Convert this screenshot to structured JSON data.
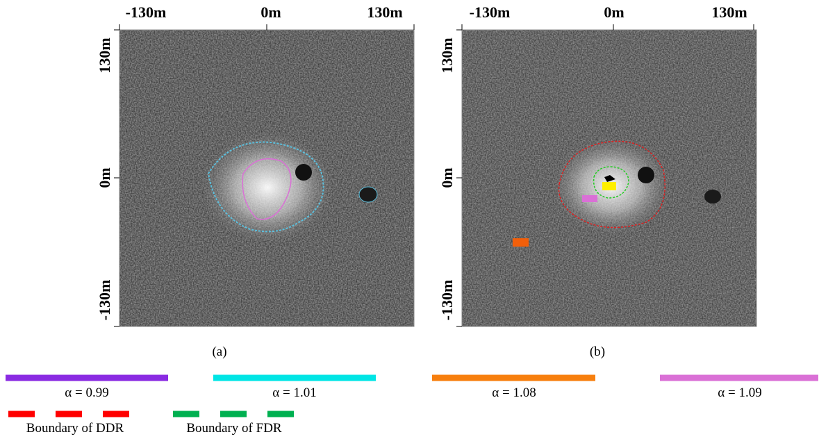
{
  "panels": [
    {
      "x_labels": [
        "-130m",
        "0m",
        "130m"
      ],
      "y_labels": [
        "130m",
        "0m",
        "-130m"
      ],
      "caption": "(a)"
    },
    {
      "x_labels": [
        "-130m",
        "0m",
        "130m"
      ],
      "y_labels": [
        "130m",
        "0m",
        "-130m"
      ],
      "caption": "(b)"
    }
  ],
  "legend": {
    "items": [
      {
        "label": "α = 0.99",
        "color": "#8a2be2"
      },
      {
        "label": "α = 1.01",
        "color": "#00e5e5"
      },
      {
        "label": "α = 1.08",
        "color": "#f77f0e"
      },
      {
        "label": "α = 1.09",
        "color": "#da70d6"
      }
    ],
    "boundaries": [
      {
        "label": "Boundary of DDR",
        "color": "#ff0000"
      },
      {
        "label": "Boundary of FDR",
        "color": "#00b050"
      }
    ]
  }
}
